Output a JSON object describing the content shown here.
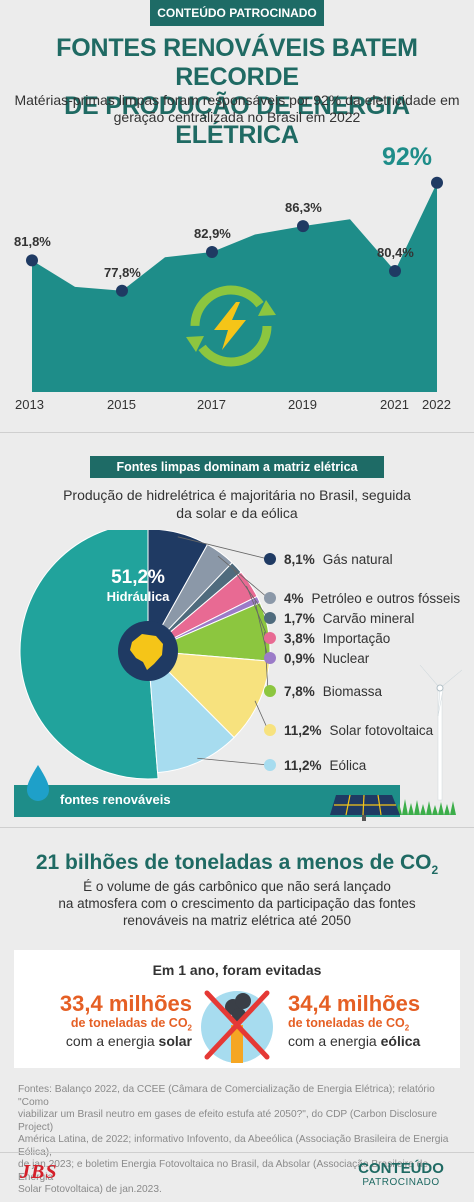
{
  "banner": "CONTEÚDO PATROCINADO",
  "title_line1": "FONTES RENOVÁVEIS BATEM RECORDE",
  "title_line2": "DE PRODUÇÃO DE ENERGIA ELÉTRICA",
  "subtitle_line1": "Matérias-primas limpas foram responsáveis por 92% da eletricidade em",
  "subtitle_line2": "geração centralizada no Brasil em 2022",
  "colors": {
    "teal": "#1e8d89",
    "dark_teal": "#1e6b66",
    "orange": "#e55f24",
    "navy": "#1f3a63",
    "green": "#3cae4a"
  },
  "chart_data": [
    {
      "type": "area",
      "x": [
        "2013",
        "2015",
        "2017",
        "2019",
        "2021",
        "2022"
      ],
      "values": [
        81.8,
        77.8,
        82.9,
        86.3,
        80.4,
        92
      ],
      "labels": [
        "81,8%",
        "77,8%",
        "82,9%",
        "86,3%",
        "80,4%",
        "92%"
      ],
      "unit": "%"
    },
    {
      "type": "pie",
      "title": "Fontes limpas dominam a matriz elétrica",
      "subtitle_line1": "Produção de hidrelétrica é majoritária no Brasil, seguida",
      "subtitle_line2": "da solar e da eólica",
      "slices": [
        {
          "name": "Hidráulica",
          "value": 51.2,
          "label": "51,2%",
          "color": "#21a39c"
        },
        {
          "name": "Gás natural",
          "value": 8.1,
          "label": "8,1%",
          "color": "#1f3a63"
        },
        {
          "name": "Petróleo e outros fósseis",
          "value": 4,
          "label": "4%",
          "color": "#8b98a8"
        },
        {
          "name": "Carvão mineral",
          "value": 1.7,
          "label": "1,7%",
          "color": "#4f6b7d"
        },
        {
          "name": "Importação",
          "value": 3.8,
          "label": "3,8%",
          "color": "#e86a93"
        },
        {
          "name": "Nuclear",
          "value": 0.9,
          "label": "0,9%",
          "color": "#9b7bc8"
        },
        {
          "name": "Biomassa",
          "value": 7.8,
          "label": "7,8%",
          "color": "#8cc63f"
        },
        {
          "name": "Solar fotovoltaica",
          "value": 11.2,
          "label": "11,2%",
          "color": "#f7e27e"
        },
        {
          "name": "Eólica",
          "value": 11.2,
          "label": "11,2%",
          "color": "#a7dcef"
        }
      ]
    }
  ],
  "renewables_label": "fontes renováveis",
  "co2": {
    "title_main": "21 bilhões de toneladas a menos de CO",
    "title_sub": "2",
    "text_line1": "É o volume de gás carbônico que não será lançado",
    "text_line2": "na atmosfera com o crescimento da participação das fontes",
    "text_line3": "renováveis na matriz elétrica até 2050"
  },
  "avoided": {
    "title": "Em 1 ano, foram evitadas",
    "solar": {
      "amount": "33,4 milhões",
      "unit_main": "de toneladas de CO",
      "unit_sub": "2",
      "with": "com a energia ",
      "source": "solar"
    },
    "wind": {
      "amount": "34,4 milhões",
      "unit_main": "de toneladas de CO",
      "unit_sub": "2",
      "with": "com a energia ",
      "source": "eólica"
    }
  },
  "sources": {
    "l1": "Fontes: Balanço 2022, da CCEE (Câmara de Comercialização de Energia Elétrica); relatório \"Como",
    "l2": "viabilizar um Brasil neutro em gases de efeito estufa até 2050?\", do CDP (Carbon Disclosure Project)",
    "l3": "América Latina, de 2022; informativo Infovento, da Abeeólica (Associação Brasileira de Energia Eólica),",
    "l4": "de jan.2023; e boletim Energia Fotovoltaica no Brasil, da Absolar (Associação Brasileira de Energia",
    "l5": "Solar Fotovoltaica) de jan.2023."
  },
  "footer": {
    "jbs": "JBS",
    "brand1": "CONTEÚDO",
    "brand2": "PATROCINADO"
  }
}
